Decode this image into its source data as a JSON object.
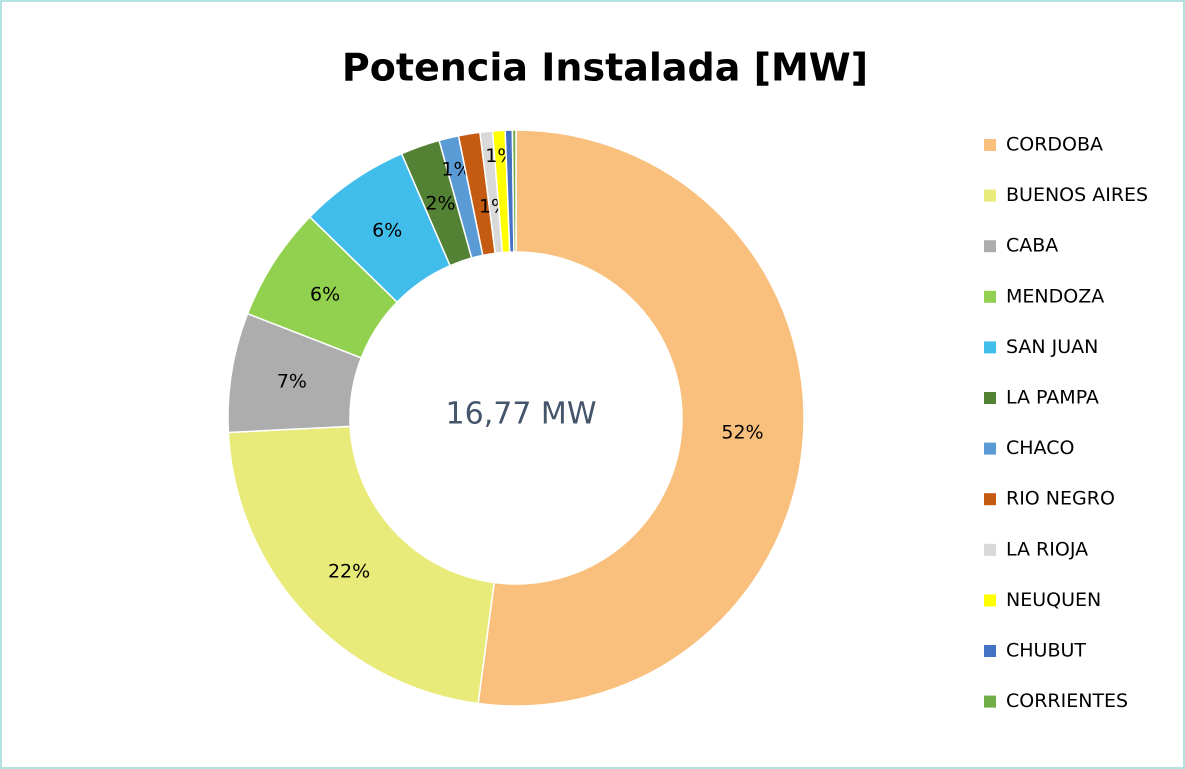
{
  "chart_data": {
    "type": "donut",
    "title": "Potencia Instalada [MW]",
    "center_label": "16,77 MW",
    "categories": [
      "CORDOBA",
      "BUENOS AIRES",
      "CABA",
      "MENDOZA",
      "SAN JUAN",
      "LA PAMPA",
      "CHACO",
      "RIO NEGRO",
      "LA RIOJA",
      "NEUQUEN",
      "CHUBUT",
      "CORRIENTES"
    ],
    "values": [
      52.1,
      22.1,
      6.7,
      6.4,
      6.2,
      2.2,
      1.1,
      1.2,
      0.7,
      0.7,
      0.4,
      0.2
    ],
    "value_labels": [
      "52%",
      "22%",
      "7%",
      "6%",
      "6%",
      "2%",
      "1%",
      null,
      "1%",
      "1%",
      null,
      null
    ],
    "colors": [
      "#f9bf7c",
      "#e8ea7a",
      "#adadad",
      "#92d050",
      "#41bdeb",
      "#548235",
      "#5b9bd5",
      "#c55a11",
      "#d9d9d9",
      "#ffff00",
      "#4472c4",
      "#70ad47"
    ],
    "legend": "right"
  }
}
